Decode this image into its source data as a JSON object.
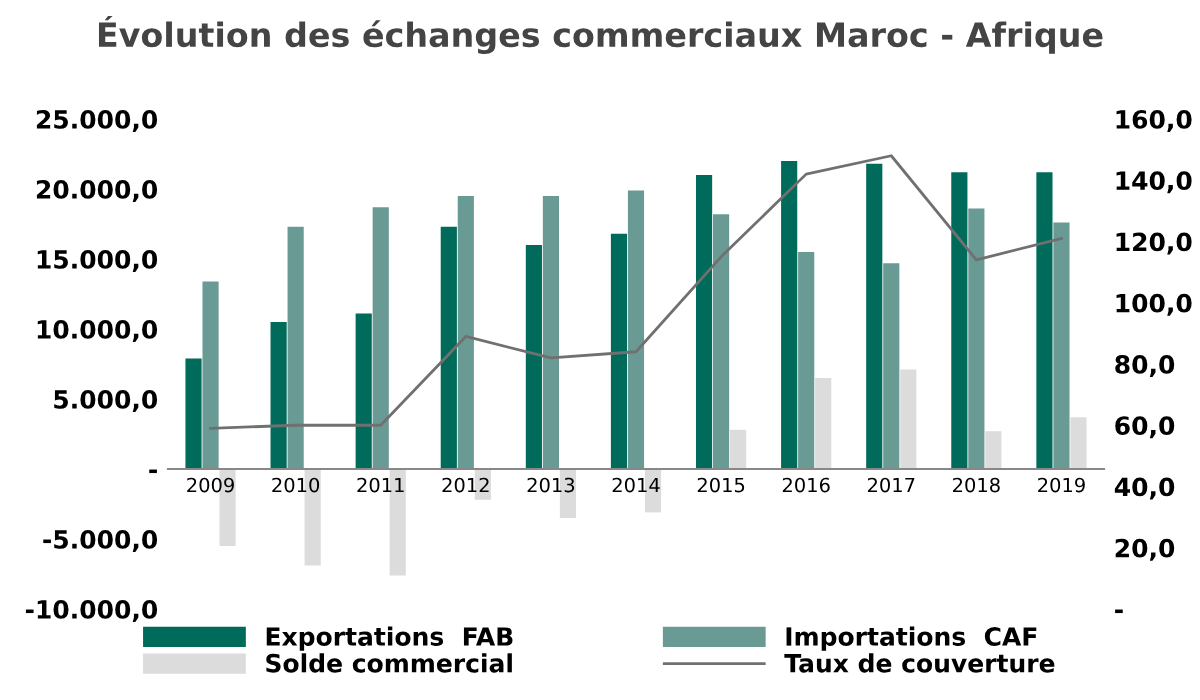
{
  "chart_data": {
    "type": "bar",
    "title": "Évolution des échanges commerciaux Maroc - Afrique",
    "categories": [
      "2009",
      "2010",
      "2011",
      "2012",
      "2013",
      "2014",
      "2015",
      "2016",
      "2017",
      "2018",
      "2019"
    ],
    "series": [
      {
        "name": "Exportations  FAB",
        "color": "#006b5a",
        "values": [
          7900,
          10500,
          11100,
          17300,
          16000,
          16800,
          21000,
          22000,
          21800,
          21200,
          21200
        ]
      },
      {
        "name": "Importations  CAF",
        "color": "#6a9a94",
        "values": [
          13400,
          17300,
          18700,
          19500,
          19500,
          19900,
          18200,
          15500,
          14700,
          18600,
          17600
        ]
      },
      {
        "name": "Solde commercial",
        "color": "#dcdcdc",
        "values": [
          -5500,
          -6900,
          -7600,
          -2200,
          -3500,
          -3100,
          2800,
          6500,
          7100,
          2700,
          3700
        ]
      },
      {
        "name": "Taux de couverture",
        "type": "line",
        "axis": "y2",
        "color": "#707070",
        "values": [
          59,
          60,
          60,
          89,
          82,
          84,
          115,
          142,
          148,
          114,
          121
        ]
      }
    ],
    "ylim": [
      -10000,
      25000
    ],
    "yticks": [
      {
        "value": -10000,
        "label": "-10.000,0"
      },
      {
        "value": -5000,
        "label": "-5.000,0"
      },
      {
        "value": 0,
        "label": "-"
      },
      {
        "value": 5000,
        "label": "5.000,0"
      },
      {
        "value": 10000,
        "label": "10.000,0"
      },
      {
        "value": 15000,
        "label": "15.000,0"
      },
      {
        "value": 20000,
        "label": "20.000,0"
      },
      {
        "value": 25000,
        "label": "25.000,0"
      }
    ],
    "y2lim": [
      0,
      160
    ],
    "y2ticks": [
      {
        "value": 0,
        "label": "-"
      },
      {
        "value": 20,
        "label": "20,0"
      },
      {
        "value": 40,
        "label": "40,0"
      },
      {
        "value": 60,
        "label": "60,0"
      },
      {
        "value": 80,
        "label": "80,0"
      },
      {
        "value": 100,
        "label": "100,0"
      },
      {
        "value": 120,
        "label": "120,0"
      },
      {
        "value": 140,
        "label": "140,0"
      },
      {
        "value": 160,
        "label": "160,0"
      }
    ],
    "grid": false,
    "legend": "bottom"
  }
}
